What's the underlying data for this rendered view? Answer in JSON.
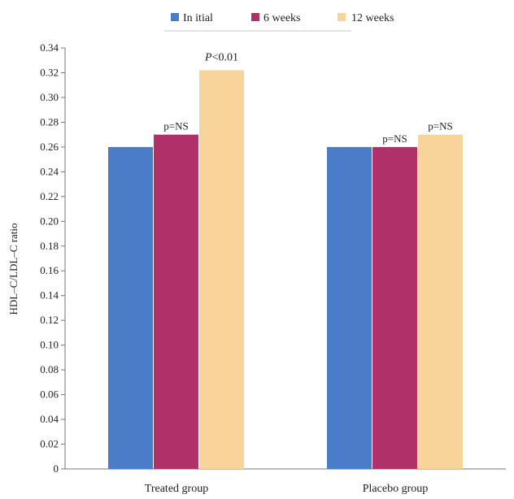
{
  "chart_data": {
    "type": "bar",
    "categories": [
      "Treated group",
      "Placebo group"
    ],
    "series": [
      {
        "name": "In itial",
        "values": [
          0.26,
          0.26
        ],
        "color": "#4a7cc7"
      },
      {
        "name": "6 weeks",
        "values": [
          0.27,
          0.26
        ],
        "color": "#b0306a"
      },
      {
        "name": "12 weeks",
        "values": [
          0.322,
          0.27
        ],
        "color": "#f8d39a"
      }
    ],
    "ylabel": "HDL–C/LDL–C ratio",
    "xlabel": "",
    "ylim": [
      0,
      0.34
    ],
    "yticks": [
      "0",
      "0.02",
      "0.04",
      "0.06",
      "0.08",
      "0.10",
      "0.12",
      "0.14",
      "0.16",
      "0.18",
      "0.20",
      "0.22",
      "0.24",
      "0.26",
      "0.28",
      "0.30",
      "0.32",
      "0.34"
    ],
    "grid": false,
    "legend": "top-center",
    "annotations": [
      {
        "category": 0,
        "series": 1,
        "text": "p=NS"
      },
      {
        "category": 0,
        "series": 2,
        "text": "P<0.01",
        "italic_part": "P"
      },
      {
        "category": 1,
        "series": 1,
        "text": "p=NS"
      },
      {
        "category": 1,
        "series": 2,
        "text": "p=NS"
      }
    ]
  }
}
